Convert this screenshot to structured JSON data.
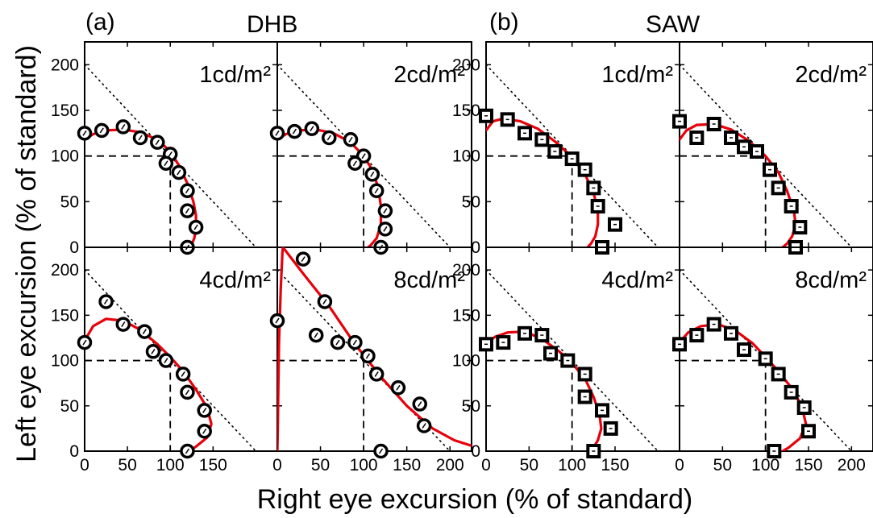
{
  "figure": {
    "groups": [
      {
        "letter": "(a)",
        "name": "DHB",
        "marker": "circle"
      },
      {
        "letter": "(b)",
        "name": "SAW",
        "marker": "square"
      }
    ],
    "ylabel": "Left eye excursion (% of standard)",
    "xlabel": "Right eye excursion (% of standard)",
    "colors": {
      "fit": "#e8000b",
      "data": "#000000",
      "axes": "#000000",
      "guides": "#000000"
    }
  },
  "chart_data": [
    {
      "type": "scatter",
      "group": "DHB",
      "panel_label": "1cd/m²",
      "xlim": [
        0,
        225
      ],
      "ylim": [
        0,
        225
      ],
      "xticks": [
        0,
        50,
        100,
        150
      ],
      "yticks": [
        0,
        50,
        100,
        150,
        200
      ],
      "reference": [
        100,
        100
      ],
      "diagonal_sum": 200,
      "points": [
        [
          0,
          125
        ],
        [
          20,
          128
        ],
        [
          45,
          132
        ],
        [
          65,
          120
        ],
        [
          85,
          115
        ],
        [
          100,
          102
        ],
        [
          95,
          92
        ],
        [
          110,
          82
        ],
        [
          120,
          62
        ],
        [
          120,
          40
        ],
        [
          130,
          22
        ],
        [
          120,
          0
        ]
      ],
      "fit": [
        [
          0,
          118
        ],
        [
          10,
          124
        ],
        [
          25,
          128
        ],
        [
          45,
          129
        ],
        [
          65,
          126
        ],
        [
          85,
          118
        ],
        [
          100,
          105
        ],
        [
          110,
          90
        ],
        [
          120,
          70
        ],
        [
          127,
          50
        ],
        [
          130,
          35
        ],
        [
          130,
          20
        ],
        [
          128,
          10
        ],
        [
          125,
          3
        ],
        [
          123,
          0
        ]
      ]
    },
    {
      "type": "scatter",
      "group": "DHB",
      "panel_label": "2cd/m²",
      "xlim": [
        0,
        225
      ],
      "ylim": [
        0,
        225
      ],
      "xticks": [
        0,
        50,
        100,
        150
      ],
      "yticks": [
        0,
        50,
        100,
        150,
        200
      ],
      "reference": [
        100,
        100
      ],
      "diagonal_sum": 200,
      "points": [
        [
          0,
          125
        ],
        [
          20,
          127
        ],
        [
          40,
          130
        ],
        [
          60,
          120
        ],
        [
          85,
          118
        ],
        [
          100,
          100
        ],
        [
          90,
          92
        ],
        [
          110,
          80
        ],
        [
          115,
          62
        ],
        [
          125,
          40
        ],
        [
          125,
          20
        ],
        [
          120,
          0
        ]
      ],
      "fit": [
        [
          0,
          118
        ],
        [
          10,
          124
        ],
        [
          25,
          128
        ],
        [
          45,
          129
        ],
        [
          65,
          125
        ],
        [
          85,
          115
        ],
        [
          100,
          100
        ],
        [
          110,
          85
        ],
        [
          117,
          65
        ],
        [
          120,
          45
        ],
        [
          120,
          25
        ],
        [
          115,
          10
        ],
        [
          108,
          2
        ],
        [
          105,
          0
        ]
      ]
    },
    {
      "type": "scatter",
      "group": "DHB",
      "panel_label": "4cd/m²",
      "xlim": [
        0,
        225
      ],
      "ylim": [
        0,
        225
      ],
      "xticks": [
        0,
        50,
        100,
        150
      ],
      "yticks": [
        0,
        50,
        100,
        150,
        200
      ],
      "reference": [
        100,
        100
      ],
      "diagonal_sum": 200,
      "points": [
        [
          0,
          120
        ],
        [
          25,
          165
        ],
        [
          45,
          140
        ],
        [
          70,
          132
        ],
        [
          80,
          110
        ],
        [
          95,
          100
        ],
        [
          115,
          85
        ],
        [
          120,
          65
        ],
        [
          140,
          45
        ],
        [
          140,
          22
        ],
        [
          120,
          0
        ]
      ],
      "fit": [
        [
          0,
          122
        ],
        [
          10,
          138
        ],
        [
          25,
          146
        ],
        [
          45,
          144
        ],
        [
          65,
          134
        ],
        [
          85,
          118
        ],
        [
          100,
          104
        ],
        [
          115,
          88
        ],
        [
          130,
          68
        ],
        [
          143,
          48
        ],
        [
          148,
          30
        ],
        [
          143,
          15
        ],
        [
          130,
          5
        ],
        [
          122,
          0
        ]
      ]
    },
    {
      "type": "scatter",
      "group": "DHB",
      "panel_label": "8cd/m²",
      "xlim": [
        0,
        225
      ],
      "ylim": [
        0,
        225
      ],
      "xticks": [
        0,
        50,
        100,
        150,
        200
      ],
      "yticks": [
        0,
        50,
        100,
        150,
        200
      ],
      "reference": [
        100,
        100
      ],
      "diagonal_sum": 200,
      "points": [
        [
          0,
          144
        ],
        [
          30,
          212
        ],
        [
          55,
          165
        ],
        [
          45,
          128
        ],
        [
          70,
          120
        ],
        [
          90,
          120
        ],
        [
          105,
          105
        ],
        [
          115,
          85
        ],
        [
          140,
          70
        ],
        [
          165,
          52
        ],
        [
          170,
          28
        ],
        [
          120,
          0
        ]
      ],
      "fit": [
        [
          0,
          0
        ],
        [
          0.5,
          20
        ],
        [
          1,
          60
        ],
        [
          2,
          120
        ],
        [
          4,
          180
        ],
        [
          6,
          220
        ],
        [
          6.5,
          225
        ],
        [
          30,
          196
        ],
        [
          60,
          160
        ],
        [
          90,
          118
        ],
        [
          120,
          82
        ],
        [
          150,
          50
        ],
        [
          180,
          25
        ],
        [
          205,
          12
        ],
        [
          225,
          6
        ]
      ]
    },
    {
      "type": "scatter",
      "group": "SAW",
      "panel_label": "1cd/m²",
      "xlim": [
        0,
        225
      ],
      "ylim": [
        0,
        225
      ],
      "xticks": [
        0,
        50,
        100,
        150
      ],
      "yticks": [
        0,
        50,
        100,
        150,
        200
      ],
      "reference": [
        100,
        100
      ],
      "diagonal_sum": 200,
      "points": [
        [
          0,
          144
        ],
        [
          25,
          140
        ],
        [
          45,
          125
        ],
        [
          65,
          118
        ],
        [
          80,
          105
        ],
        [
          100,
          97
        ],
        [
          115,
          85
        ],
        [
          125,
          65
        ],
        [
          130,
          45
        ],
        [
          150,
          25
        ],
        [
          135,
          0
        ]
      ],
      "fit": [
        [
          0,
          128
        ],
        [
          8,
          138
        ],
        [
          20,
          141
        ],
        [
          40,
          138
        ],
        [
          60,
          130
        ],
        [
          80,
          116
        ],
        [
          100,
          99
        ],
        [
          115,
          80
        ],
        [
          125,
          60
        ],
        [
          130,
          40
        ],
        [
          130,
          25
        ],
        [
          127,
          12
        ],
        [
          122,
          4
        ],
        [
          118,
          0
        ]
      ]
    },
    {
      "type": "scatter",
      "group": "SAW",
      "panel_label": "2cd/m²",
      "xlim": [
        0,
        225
      ],
      "ylim": [
        0,
        225
      ],
      "xticks": [
        0,
        50,
        100,
        150
      ],
      "yticks": [
        0,
        50,
        100,
        150,
        200
      ],
      "reference": [
        100,
        100
      ],
      "diagonal_sum": 200,
      "points": [
        [
          0,
          138
        ],
        [
          20,
          120
        ],
        [
          40,
          135
        ],
        [
          60,
          120
        ],
        [
          75,
          110
        ],
        [
          90,
          105
        ],
        [
          105,
          85
        ],
        [
          115,
          65
        ],
        [
          130,
          45
        ],
        [
          140,
          22
        ],
        [
          135,
          0
        ]
      ],
      "fit": [
        [
          0,
          118
        ],
        [
          8,
          128
        ],
        [
          20,
          134
        ],
        [
          40,
          135
        ],
        [
          60,
          129
        ],
        [
          80,
          117
        ],
        [
          100,
          100
        ],
        [
          115,
          82
        ],
        [
          125,
          62
        ],
        [
          133,
          40
        ],
        [
          135,
          25
        ],
        [
          131,
          12
        ],
        [
          125,
          4
        ],
        [
          120,
          0
        ]
      ]
    },
    {
      "type": "scatter",
      "group": "SAW",
      "panel_label": "4cd/m²",
      "xlim": [
        0,
        225
      ],
      "ylim": [
        0,
        225
      ],
      "xticks": [
        0,
        50,
        100,
        150
      ],
      "yticks": [
        0,
        50,
        100,
        150,
        200
      ],
      "reference": [
        100,
        100
      ],
      "diagonal_sum": 200,
      "points": [
        [
          0,
          118
        ],
        [
          20,
          120
        ],
        [
          45,
          130
        ],
        [
          65,
          128
        ],
        [
          75,
          108
        ],
        [
          95,
          100
        ],
        [
          115,
          85
        ],
        [
          115,
          60
        ],
        [
          135,
          45
        ],
        [
          145,
          25
        ],
        [
          125,
          0
        ]
      ],
      "fit": [
        [
          0,
          118
        ],
        [
          10,
          126
        ],
        [
          25,
          131
        ],
        [
          45,
          132
        ],
        [
          65,
          124
        ],
        [
          85,
          110
        ],
        [
          100,
          97
        ],
        [
          115,
          80
        ],
        [
          125,
          60
        ],
        [
          132,
          40
        ],
        [
          134,
          25
        ],
        [
          130,
          12
        ],
        [
          125,
          4
        ],
        [
          120,
          0
        ]
      ]
    },
    {
      "type": "scatter",
      "group": "SAW",
      "panel_label": "8cd/m²",
      "xlim": [
        0,
        225
      ],
      "ylim": [
        0,
        225
      ],
      "xticks": [
        0,
        50,
        100,
        150,
        200
      ],
      "yticks": [
        0,
        50,
        100,
        150,
        200
      ],
      "reference": [
        100,
        100
      ],
      "diagonal_sum": 200,
      "points": [
        [
          0,
          118
        ],
        [
          20,
          128
        ],
        [
          40,
          140
        ],
        [
          60,
          130
        ],
        [
          75,
          112
        ],
        [
          100,
          102
        ],
        [
          115,
          85
        ],
        [
          130,
          65
        ],
        [
          145,
          48
        ],
        [
          150,
          22
        ],
        [
          110,
          0
        ]
      ],
      "fit": [
        [
          0,
          120
        ],
        [
          10,
          131
        ],
        [
          25,
          138
        ],
        [
          45,
          140
        ],
        [
          65,
          133
        ],
        [
          85,
          119
        ],
        [
          100,
          104
        ],
        [
          115,
          88
        ],
        [
          130,
          70
        ],
        [
          142,
          50
        ],
        [
          147,
          30
        ],
        [
          140,
          14
        ],
        [
          127,
          4
        ],
        [
          120,
          0
        ]
      ]
    }
  ]
}
